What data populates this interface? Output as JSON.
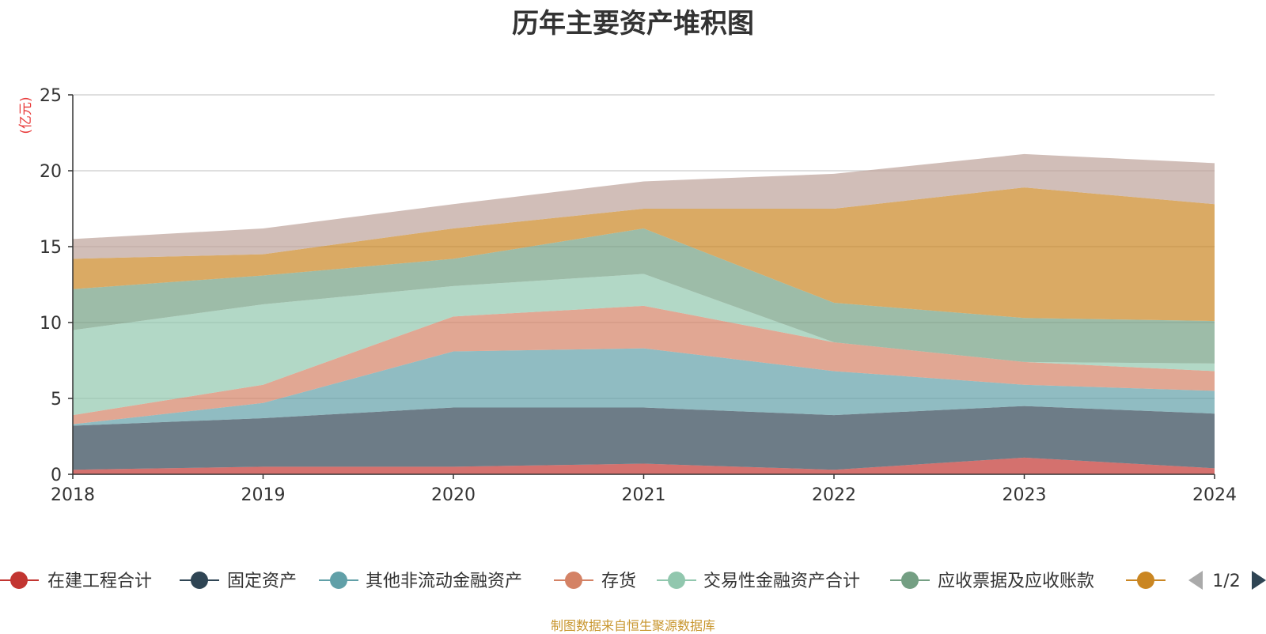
{
  "chart_data": {
    "type": "area",
    "title": "历年主要资产堆积图",
    "ylabel": "(亿元)",
    "xlabel": "",
    "ylim": [
      0,
      25
    ],
    "yticks": [
      0,
      5,
      10,
      15,
      20,
      25
    ],
    "grid": true,
    "stacked": true,
    "categories": [
      "2018",
      "2019",
      "2020",
      "2021",
      "2022",
      "2023",
      "2024"
    ],
    "series": [
      {
        "name": "在建工程合计",
        "color": "#c23531",
        "values": [
          0.3,
          0.5,
          0.5,
          0.7,
          0.3,
          1.1,
          0.4
        ]
      },
      {
        "name": "固定资产",
        "color": "#2f4554",
        "values": [
          2.9,
          3.2,
          3.9,
          3.7,
          3.6,
          3.4,
          3.6
        ]
      },
      {
        "name": "其他非流动金融资产",
        "color": "#61a0a8",
        "values": [
          0.1,
          1.0,
          3.7,
          3.9,
          2.9,
          1.4,
          1.5
        ]
      },
      {
        "name": "存货",
        "color": "#d48265",
        "values": [
          0.6,
          1.2,
          2.3,
          2.8,
          1.9,
          1.5,
          1.3
        ]
      },
      {
        "name": "交易性金融资产合计",
        "color": "#91c7ae",
        "values": [
          5.6,
          5.3,
          2.0,
          2.1,
          0.0,
          0.0,
          0.5
        ]
      },
      {
        "name": "应收票据及应收账款",
        "color": "#749f83",
        "values": [
          2.7,
          1.9,
          1.8,
          3.0,
          2.6,
          2.9,
          2.8
        ]
      },
      {
        "name": "",
        "color": "#ca8622",
        "values": [
          2.0,
          1.4,
          2.0,
          1.3,
          6.2,
          8.6,
          7.7
        ]
      },
      {
        "name": "",
        "color": "#bda29a",
        "values": [
          1.3,
          1.7,
          1.6,
          1.8,
          2.3,
          2.2,
          2.7
        ]
      }
    ],
    "legend_position": "bottom",
    "legend_page": "1/2"
  },
  "footer_text": "制图数据来自恒生聚源数据库"
}
